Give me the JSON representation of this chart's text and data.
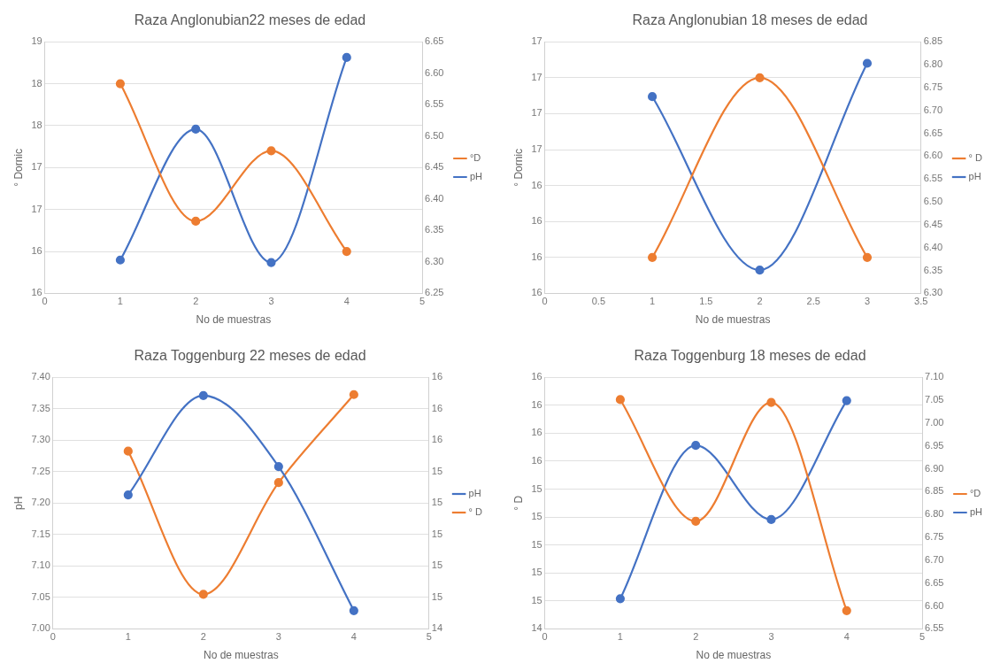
{
  "chart_data": [
    {
      "type": "line",
      "title": "Raza Anglonubian22 meses de edad",
      "xlabel": "No de muestras",
      "ylabel": "° Dornic",
      "xlim": [
        0,
        5
      ],
      "xticks": [
        0,
        1,
        2,
        3,
        4,
        5
      ],
      "ylim": [
        15.5,
        18.5
      ],
      "yticks": [
        {
          "value": 15.5,
          "label": "16"
        },
        {
          "value": 16,
          "label": "16"
        },
        {
          "value": 16.5,
          "label": "17"
        },
        {
          "value": 17,
          "label": "17"
        },
        {
          "value": 17.5,
          "label": "18"
        },
        {
          "value": 18,
          "label": "18"
        },
        {
          "value": 18.5,
          "label": "19"
        }
      ],
      "y2lim": [
        6.25,
        6.65
      ],
      "y2ticks": [
        {
          "value": 6.25,
          "label": "6.25"
        },
        {
          "value": 6.3,
          "label": "6.30"
        },
        {
          "value": 6.35,
          "label": "6.35"
        },
        {
          "value": 6.4,
          "label": "6.40"
        },
        {
          "value": 6.45,
          "label": "6.45"
        },
        {
          "value": 6.5,
          "label": "6.50"
        },
        {
          "value": 6.55,
          "label": "6.55"
        },
        {
          "value": 6.6,
          "label": "6.60"
        },
        {
          "value": 6.65,
          "label": "6.65"
        }
      ],
      "grid": "y",
      "legend": "right",
      "marker": "circle",
      "x": [
        1,
        2,
        3,
        4
      ],
      "series": [
        {
          "name": "°D",
          "color": "#ed7d31",
          "values": [
            18.0,
            16.36,
            17.2,
            16.0
          ]
        },
        {
          "name": "pH",
          "color": "#4472c4",
          "axis": "y2",
          "values": [
            6.303,
            6.511,
            6.299,
            6.625
          ]
        }
      ]
    },
    {
      "type": "line",
      "title": "Raza Anglonubian 18 meses de edad",
      "xlabel": "No de muestras",
      "ylabel": "° Dornic",
      "xlim": [
        0,
        3.5
      ],
      "xticks": [
        0,
        0.5,
        1,
        1.5,
        2,
        2.5,
        3,
        3.5
      ],
      "ylim": [
        15.5,
        17.25
      ],
      "yticks": [
        {
          "value": 15.5,
          "label": "16"
        },
        {
          "value": 15.75,
          "label": "16"
        },
        {
          "value": 16,
          "label": "16"
        },
        {
          "value": 16.25,
          "label": "16"
        },
        {
          "value": 16.5,
          "label": "17"
        },
        {
          "value": 16.75,
          "label": "17"
        },
        {
          "value": 17,
          "label": "17"
        },
        {
          "value": 17.25,
          "label": "17"
        }
      ],
      "y2lim": [
        6.3,
        6.85
      ],
      "y2ticks": [
        {
          "value": 6.3,
          "label": "6.30"
        },
        {
          "value": 6.35,
          "label": "6.35"
        },
        {
          "value": 6.4,
          "label": "6.40"
        },
        {
          "value": 6.45,
          "label": "6.45"
        },
        {
          "value": 6.5,
          "label": "6.50"
        },
        {
          "value": 6.55,
          "label": "6.55"
        },
        {
          "value": 6.6,
          "label": "6.60"
        },
        {
          "value": 6.65,
          "label": "6.65"
        },
        {
          "value": 6.7,
          "label": "6.70"
        },
        {
          "value": 6.75,
          "label": "6.75"
        },
        {
          "value": 6.8,
          "label": "6.80"
        },
        {
          "value": 6.85,
          "label": "6.85"
        }
      ],
      "grid": "y",
      "legend": "right",
      "marker": "circle",
      "x": [
        1,
        2,
        3
      ],
      "series": [
        {
          "name": "° D",
          "color": "#ed7d31",
          "values": [
            15.75,
            17.0,
            15.75
          ]
        },
        {
          "name": "pH",
          "color": "#4472c4",
          "axis": "y2",
          "values": [
            6.73,
            6.351,
            6.803
          ]
        }
      ]
    },
    {
      "type": "line",
      "title": "Raza Toggenburg 22 meses de edad",
      "xlabel": "No de muestras",
      "ylabel": "pH",
      "xlim": [
        0,
        5
      ],
      "xticks": [
        0,
        1,
        2,
        3,
        4,
        5
      ],
      "ylim": [
        7.0,
        7.4
      ],
      "yticks": [
        {
          "value": 7.0,
          "label": "7.00"
        },
        {
          "value": 7.05,
          "label": "7.05"
        },
        {
          "value": 7.1,
          "label": "7.10"
        },
        {
          "value": 7.15,
          "label": "7.15"
        },
        {
          "value": 7.2,
          "label": "7.20"
        },
        {
          "value": 7.25,
          "label": "7.25"
        },
        {
          "value": 7.3,
          "label": "7.30"
        },
        {
          "value": 7.35,
          "label": "7.35"
        },
        {
          "value": 7.4,
          "label": "7.40"
        }
      ],
      "y2lim": [
        14.4,
        16.0
      ],
      "y2ticks": [
        {
          "value": 14.4,
          "label": "14"
        },
        {
          "value": 14.6,
          "label": "15"
        },
        {
          "value": 14.8,
          "label": "15"
        },
        {
          "value": 15.0,
          "label": "15"
        },
        {
          "value": 15.2,
          "label": "15"
        },
        {
          "value": 15.4,
          "label": "15"
        },
        {
          "value": 15.6,
          "label": "16"
        },
        {
          "value": 15.8,
          "label": "16"
        },
        {
          "value": 16.0,
          "label": "16"
        }
      ],
      "grid": "y",
      "legend": "right",
      "marker": "circle",
      "x": [
        1,
        2,
        3,
        4
      ],
      "series": [
        {
          "name": "pH",
          "color": "#4472c4",
          "values": [
            7.213,
            7.371,
            7.258,
            7.029
          ]
        },
        {
          "name": "° D",
          "color": "#ed7d31",
          "axis": "y2",
          "values": [
            15.53,
            14.62,
            15.33,
            15.89
          ]
        }
      ]
    },
    {
      "type": "line",
      "title": "Raza Toggenburg 18 meses de edad",
      "xlabel": "No de muestras",
      "ylabel": "° D",
      "xlim": [
        0,
        5
      ],
      "xticks": [
        0,
        1,
        2,
        3,
        4,
        5
      ],
      "ylim": [
        14.4,
        16.2
      ],
      "yticks": [
        {
          "value": 14.4,
          "label": "14"
        },
        {
          "value": 14.6,
          "label": "15"
        },
        {
          "value": 14.8,
          "label": "15"
        },
        {
          "value": 15.0,
          "label": "15"
        },
        {
          "value": 15.2,
          "label": "15"
        },
        {
          "value": 15.4,
          "label": "15"
        },
        {
          "value": 15.6,
          "label": "16"
        },
        {
          "value": 15.8,
          "label": "16"
        },
        {
          "value": 16.0,
          "label": "16"
        },
        {
          "value": 16.2,
          "label": "16"
        }
      ],
      "y2lim": [
        6.55,
        7.1
      ],
      "y2ticks": [
        {
          "value": 6.55,
          "label": "6.55"
        },
        {
          "value": 6.6,
          "label": "6.60"
        },
        {
          "value": 6.65,
          "label": "6.65"
        },
        {
          "value": 6.7,
          "label": "6.70"
        },
        {
          "value": 6.75,
          "label": "6.75"
        },
        {
          "value": 6.8,
          "label": "6.80"
        },
        {
          "value": 6.85,
          "label": "6.85"
        },
        {
          "value": 6.9,
          "label": "6.90"
        },
        {
          "value": 6.95,
          "label": "6.95"
        },
        {
          "value": 7.0,
          "label": "7.00"
        },
        {
          "value": 7.05,
          "label": "7.05"
        },
        {
          "value": 7.1,
          "label": "7.10"
        }
      ],
      "grid": "y",
      "legend": "right",
      "marker": "circle",
      "x": [
        1,
        2,
        3,
        4
      ],
      "series": [
        {
          "name": "°D",
          "color": "#ed7d31",
          "values": [
            16.04,
            15.17,
            16.02,
            14.53
          ]
        },
        {
          "name": "pH",
          "color": "#4472c4",
          "axis": "y2",
          "values": [
            6.616,
            6.951,
            6.789,
            7.049
          ]
        }
      ]
    }
  ]
}
